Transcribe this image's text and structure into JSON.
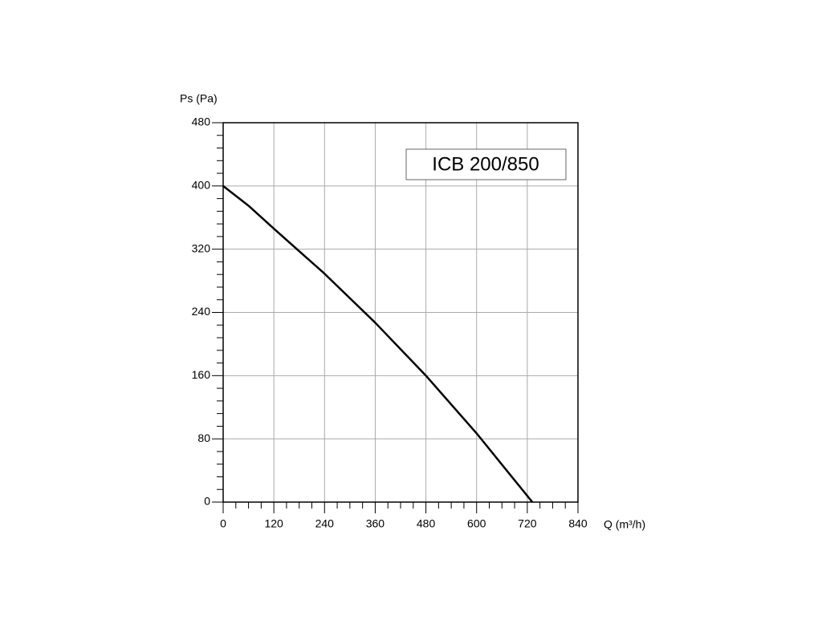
{
  "chart_data": {
    "type": "line",
    "annotation": "ICB 200/850",
    "x_label": "Q (m³/h)",
    "y_label": "Ps (Pa)",
    "xlim": [
      0,
      840
    ],
    "ylim": [
      0,
      480
    ],
    "xticks": [
      0,
      120,
      240,
      360,
      480,
      600,
      720,
      840
    ],
    "yticks": [
      0,
      80,
      160,
      240,
      320,
      400,
      480
    ],
    "x_minor_ticks": [
      30,
      60,
      90,
      150,
      180,
      210,
      270,
      300,
      330,
      390,
      420,
      450,
      510,
      540,
      570,
      630,
      660,
      690,
      750,
      780,
      810
    ],
    "y_minor_ticks": [
      16,
      32,
      48,
      64,
      96,
      112,
      128,
      144,
      176,
      192,
      208,
      224,
      256,
      272,
      288,
      304,
      336,
      352,
      368,
      384,
      416,
      432,
      448,
      464
    ],
    "grid": true,
    "series": [
      {
        "color": "#000000",
        "x": [
          0,
          60,
          120,
          240,
          360,
          480,
          600,
          732
        ],
        "values": [
          400,
          375,
          346,
          289,
          227,
          160,
          87,
          0
        ]
      }
    ]
  }
}
